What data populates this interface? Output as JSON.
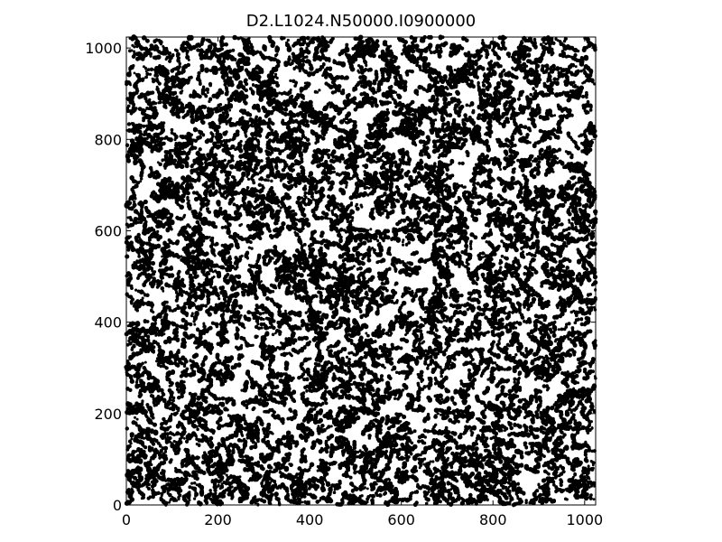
{
  "chart_data": {
    "type": "scatter",
    "title": "D2.L1024.N50000.I0900000",
    "xlabel": "",
    "ylabel": "",
    "xlim": [
      0,
      1024
    ],
    "ylim": [
      0,
      1024
    ],
    "x_ticks": [
      "0",
      "200",
      "400",
      "600",
      "800",
      "1000"
    ],
    "y_ticks": [
      "0",
      "200",
      "400",
      "600",
      "800",
      "1000"
    ],
    "x_tick_values": [
      0,
      200,
      400,
      600,
      800,
      1000
    ],
    "y_tick_values": [
      0,
      200,
      400,
      600,
      800,
      1000
    ],
    "grid": false,
    "legend": "none",
    "point_count": 50000,
    "colors": {
      "points": "#000000",
      "background": "#ffffff",
      "axes": "#000000"
    },
    "description": "Dense random scatter of black points clustered into small irregular blobs covering the whole lattice"
  }
}
